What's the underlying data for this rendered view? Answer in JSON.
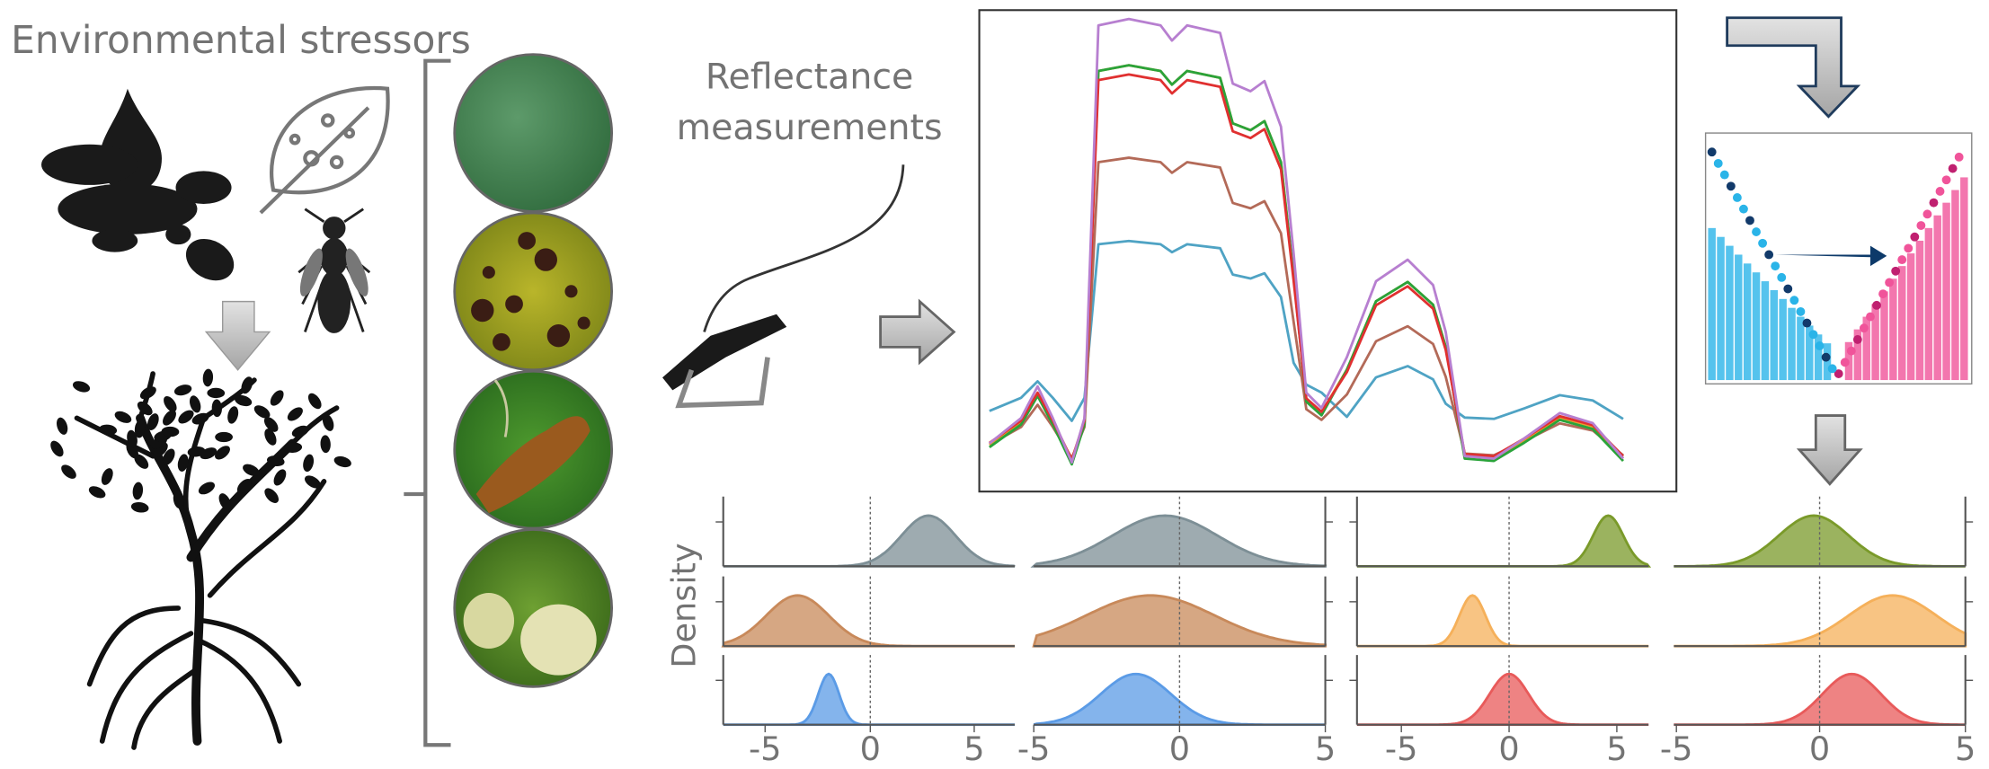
{
  "title": "Environmental stressors",
  "measurement_label": [
    "Reflectance",
    "measurements"
  ],
  "density_axis_label": "Density",
  "density_panels": [
    {
      "x_ticks": [
        "-5",
        "0",
        "5"
      ]
    },
    {
      "x_ticks": [
        "-5",
        "0",
        "5"
      ]
    },
    {
      "x_ticks": [
        "-5",
        "0",
        "5"
      ]
    },
    {
      "x_ticks": [
        "-5",
        "0",
        "5"
      ]
    }
  ]
}
